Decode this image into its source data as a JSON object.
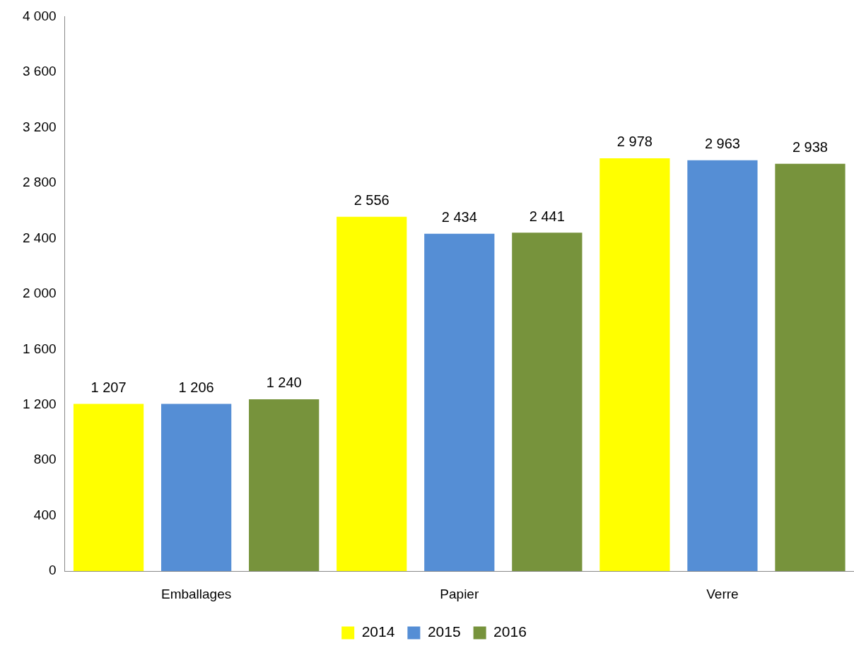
{
  "chart_data": {
    "type": "bar",
    "categories": [
      "Emballages",
      "Papier",
      "Verre"
    ],
    "series": [
      {
        "name": "2014",
        "color": "#ffff00",
        "values": [
          1207,
          2556,
          2978
        ],
        "value_labels": [
          "1 207",
          "2 556",
          "2 978"
        ]
      },
      {
        "name": "2015",
        "color": "#558ed5",
        "values": [
          1206,
          2434,
          2963
        ],
        "value_labels": [
          "1 206",
          "2 434",
          "2 963"
        ]
      },
      {
        "name": "2016",
        "color": "#77933c",
        "values": [
          1240,
          2441,
          2938
        ],
        "value_labels": [
          "1 240",
          "2 441",
          "2 938"
        ]
      }
    ],
    "ylim": [
      0,
      4000
    ],
    "yticks": [
      {
        "value": 0,
        "label": "0"
      },
      {
        "value": 400,
        "label": "400"
      },
      {
        "value": 800,
        "label": "800"
      },
      {
        "value": 1200,
        "label": "1 200"
      },
      {
        "value": 1600,
        "label": "1 600"
      },
      {
        "value": 2000,
        "label": "2 000"
      },
      {
        "value": 2400,
        "label": "2 400"
      },
      {
        "value": 2800,
        "label": "2 800"
      },
      {
        "value": 3200,
        "label": "3 200"
      },
      {
        "value": 3600,
        "label": "3 600"
      },
      {
        "value": 4000,
        "label": "4 000"
      }
    ],
    "grid": false,
    "legend": "bottom"
  }
}
